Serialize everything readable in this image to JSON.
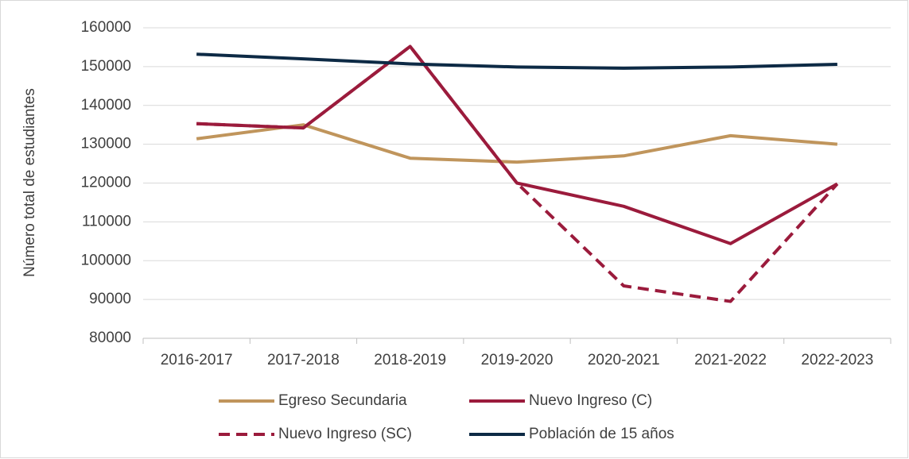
{
  "chart_data": {
    "type": "line",
    "ylabel": "Número total de estudiantes",
    "categories": [
      "2016-2017",
      "2017-2018",
      "2018-2019",
      "2019-2020",
      "2020-2021",
      "2021-2022",
      "2022-2023"
    ],
    "series": [
      {
        "name": "Egreso Secundaria",
        "color": "#c0955c",
        "values": [
          131400,
          135000,
          126400,
          125400,
          127000,
          132200,
          130000
        ]
      },
      {
        "name": "Nuevo Ingreso (C)",
        "color": "#9b1b3c",
        "values": [
          135300,
          134200,
          155200,
          120000,
          114000,
          104400,
          119800
        ]
      },
      {
        "name": "Nuevo Ingreso (SC)",
        "color": "#9b1b3c",
        "dash": true,
        "values": [
          135300,
          134200,
          155200,
          120000,
          93500,
          89500,
          119800
        ]
      },
      {
        "name": "Población de 15 años",
        "color": "#0d2a45",
        "values": [
          153200,
          152000,
          150700,
          149900,
          149600,
          149900,
          150600
        ]
      }
    ],
    "ylim": [
      80000,
      160000
    ],
    "yticks": [
      80000,
      90000,
      100000,
      110000,
      120000,
      130000,
      140000,
      150000,
      160000
    ],
    "grid": true,
    "legend": "bottom"
  }
}
